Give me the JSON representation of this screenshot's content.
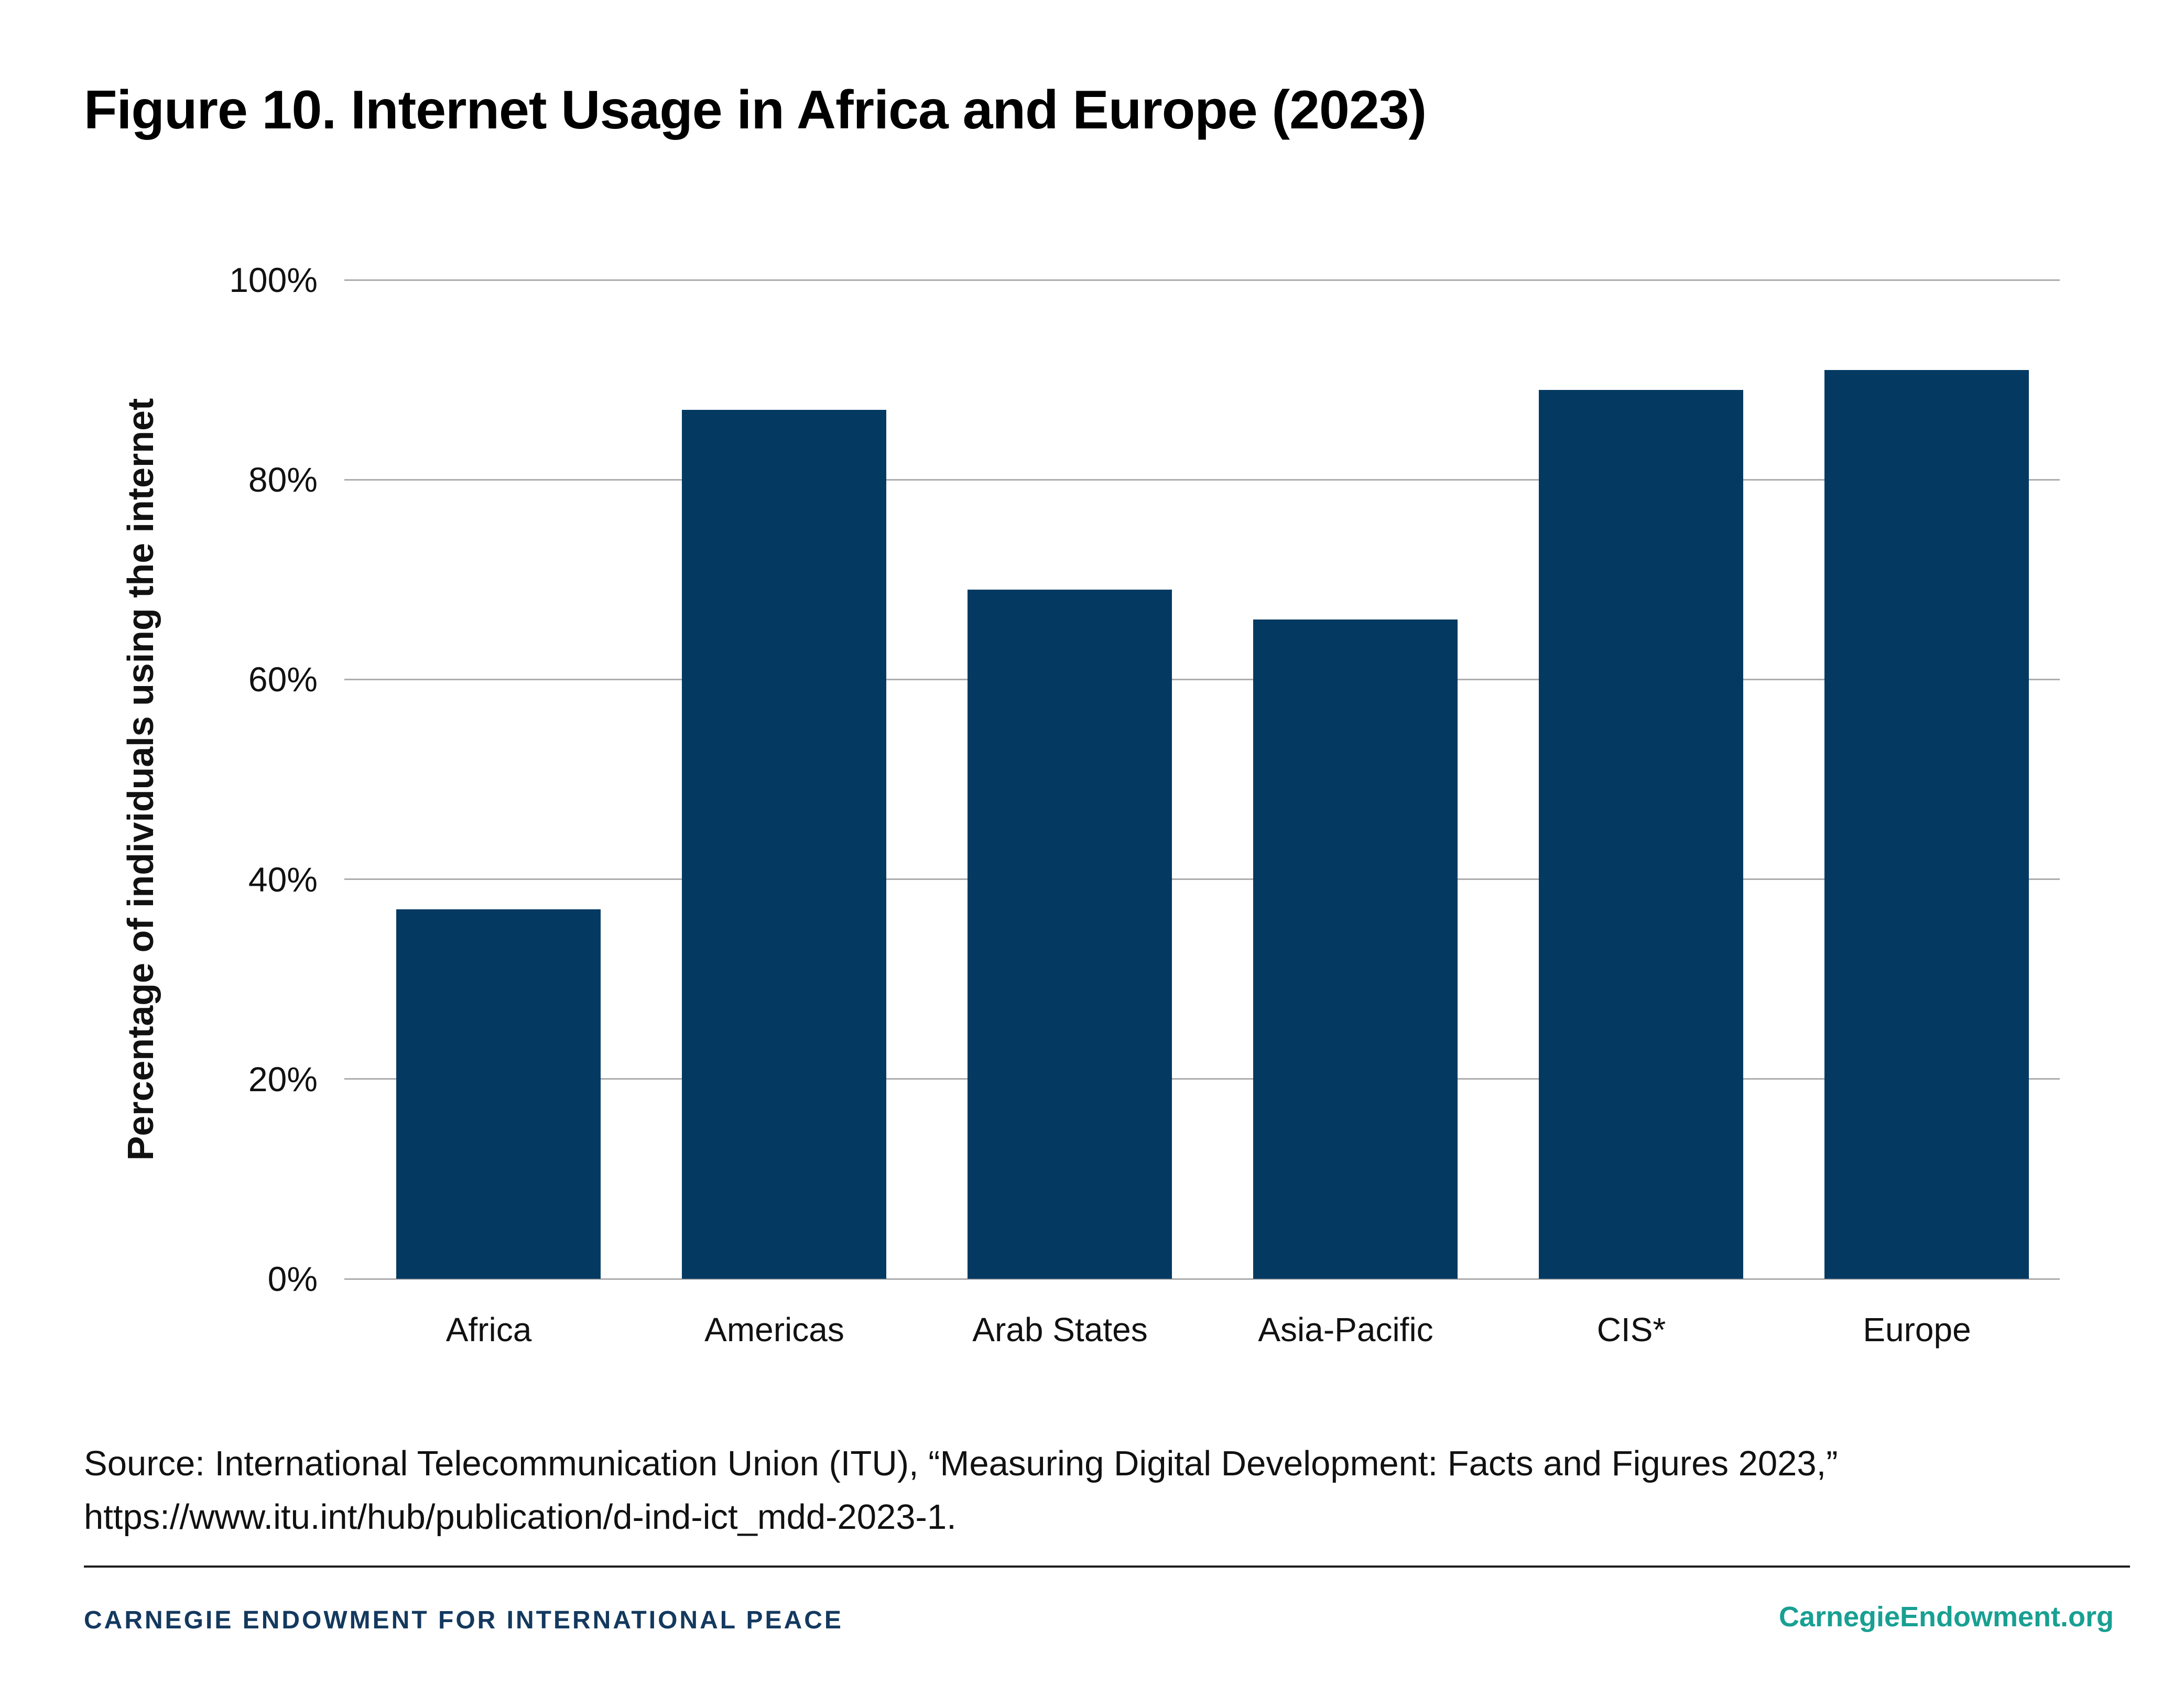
{
  "chart_data": {
    "type": "bar",
    "title": "Figure 10. Internet Usage in Africa and Europe (2023)",
    "categories": [
      "Africa",
      "Americas",
      "Arab States",
      "Asia-Pacific",
      "CIS*",
      "Europe"
    ],
    "values": [
      37,
      87,
      69,
      66,
      89,
      91
    ],
    "unit": "%",
    "xlabel": "",
    "ylabel": "Percentage of individuals using the internet",
    "ylim": [
      0,
      100
    ],
    "yticks": [
      0,
      20,
      40,
      60,
      80,
      100
    ],
    "ytick_labels": [
      "0%",
      "20%",
      "40%",
      "60%",
      "80%",
      "100%"
    ],
    "grid": true,
    "legend": "none",
    "bar_color": "#043a62",
    "gridline_color": "#adadb0"
  },
  "source": {
    "line1": "Source: International Telecommunication Union (ITU), “Measuring Digital Development: Facts and Figures 2023,”",
    "line2": "https://www.itu.int/hub/publication/d-ind-ict_mdd-2023-1."
  },
  "footer": {
    "org": "CARNEGIE ENDOWMENT FOR INTERNATIONAL PEACE",
    "site": "CarnegieEndowment.org",
    "navy": "#14395f",
    "teal": "#18a092"
  }
}
